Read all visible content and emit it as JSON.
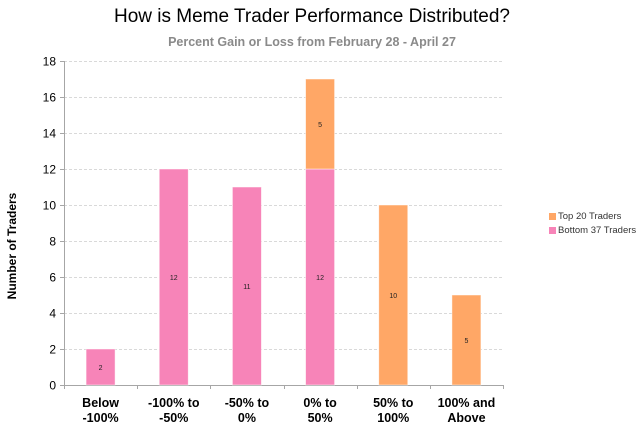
{
  "chart_data": {
    "type": "bar",
    "stacked": true,
    "title": "How is Meme Trader Performance Distributed?",
    "subtitle": "Percent Gain or Loss from February 28 - April 27",
    "xlabel": "",
    "ylabel": "Number of Traders",
    "ylim": [
      0,
      18
    ],
    "yticks": [
      0,
      2,
      4,
      6,
      8,
      10,
      12,
      14,
      16,
      18
    ],
    "grid": true,
    "legend_position": "right",
    "categories": [
      [
        "Below",
        "-100%"
      ],
      [
        "-100% to",
        "-50%"
      ],
      [
        "-50% to",
        "0%"
      ],
      [
        "0% to",
        "50%"
      ],
      [
        "50% to",
        "100%"
      ],
      [
        "100% and",
        "Above"
      ]
    ],
    "series": [
      {
        "name": "Bottom 37 Traders",
        "color": "#F784B8",
        "values": [
          2,
          12,
          11,
          12,
          0,
          0
        ]
      },
      {
        "name": "Top 20 Traders",
        "color": "#FFA766",
        "values": [
          0,
          0,
          0,
          5,
          10,
          5
        ]
      }
    ],
    "legend_order": [
      "Top 20 Traders",
      "Bottom 37 Traders"
    ]
  }
}
